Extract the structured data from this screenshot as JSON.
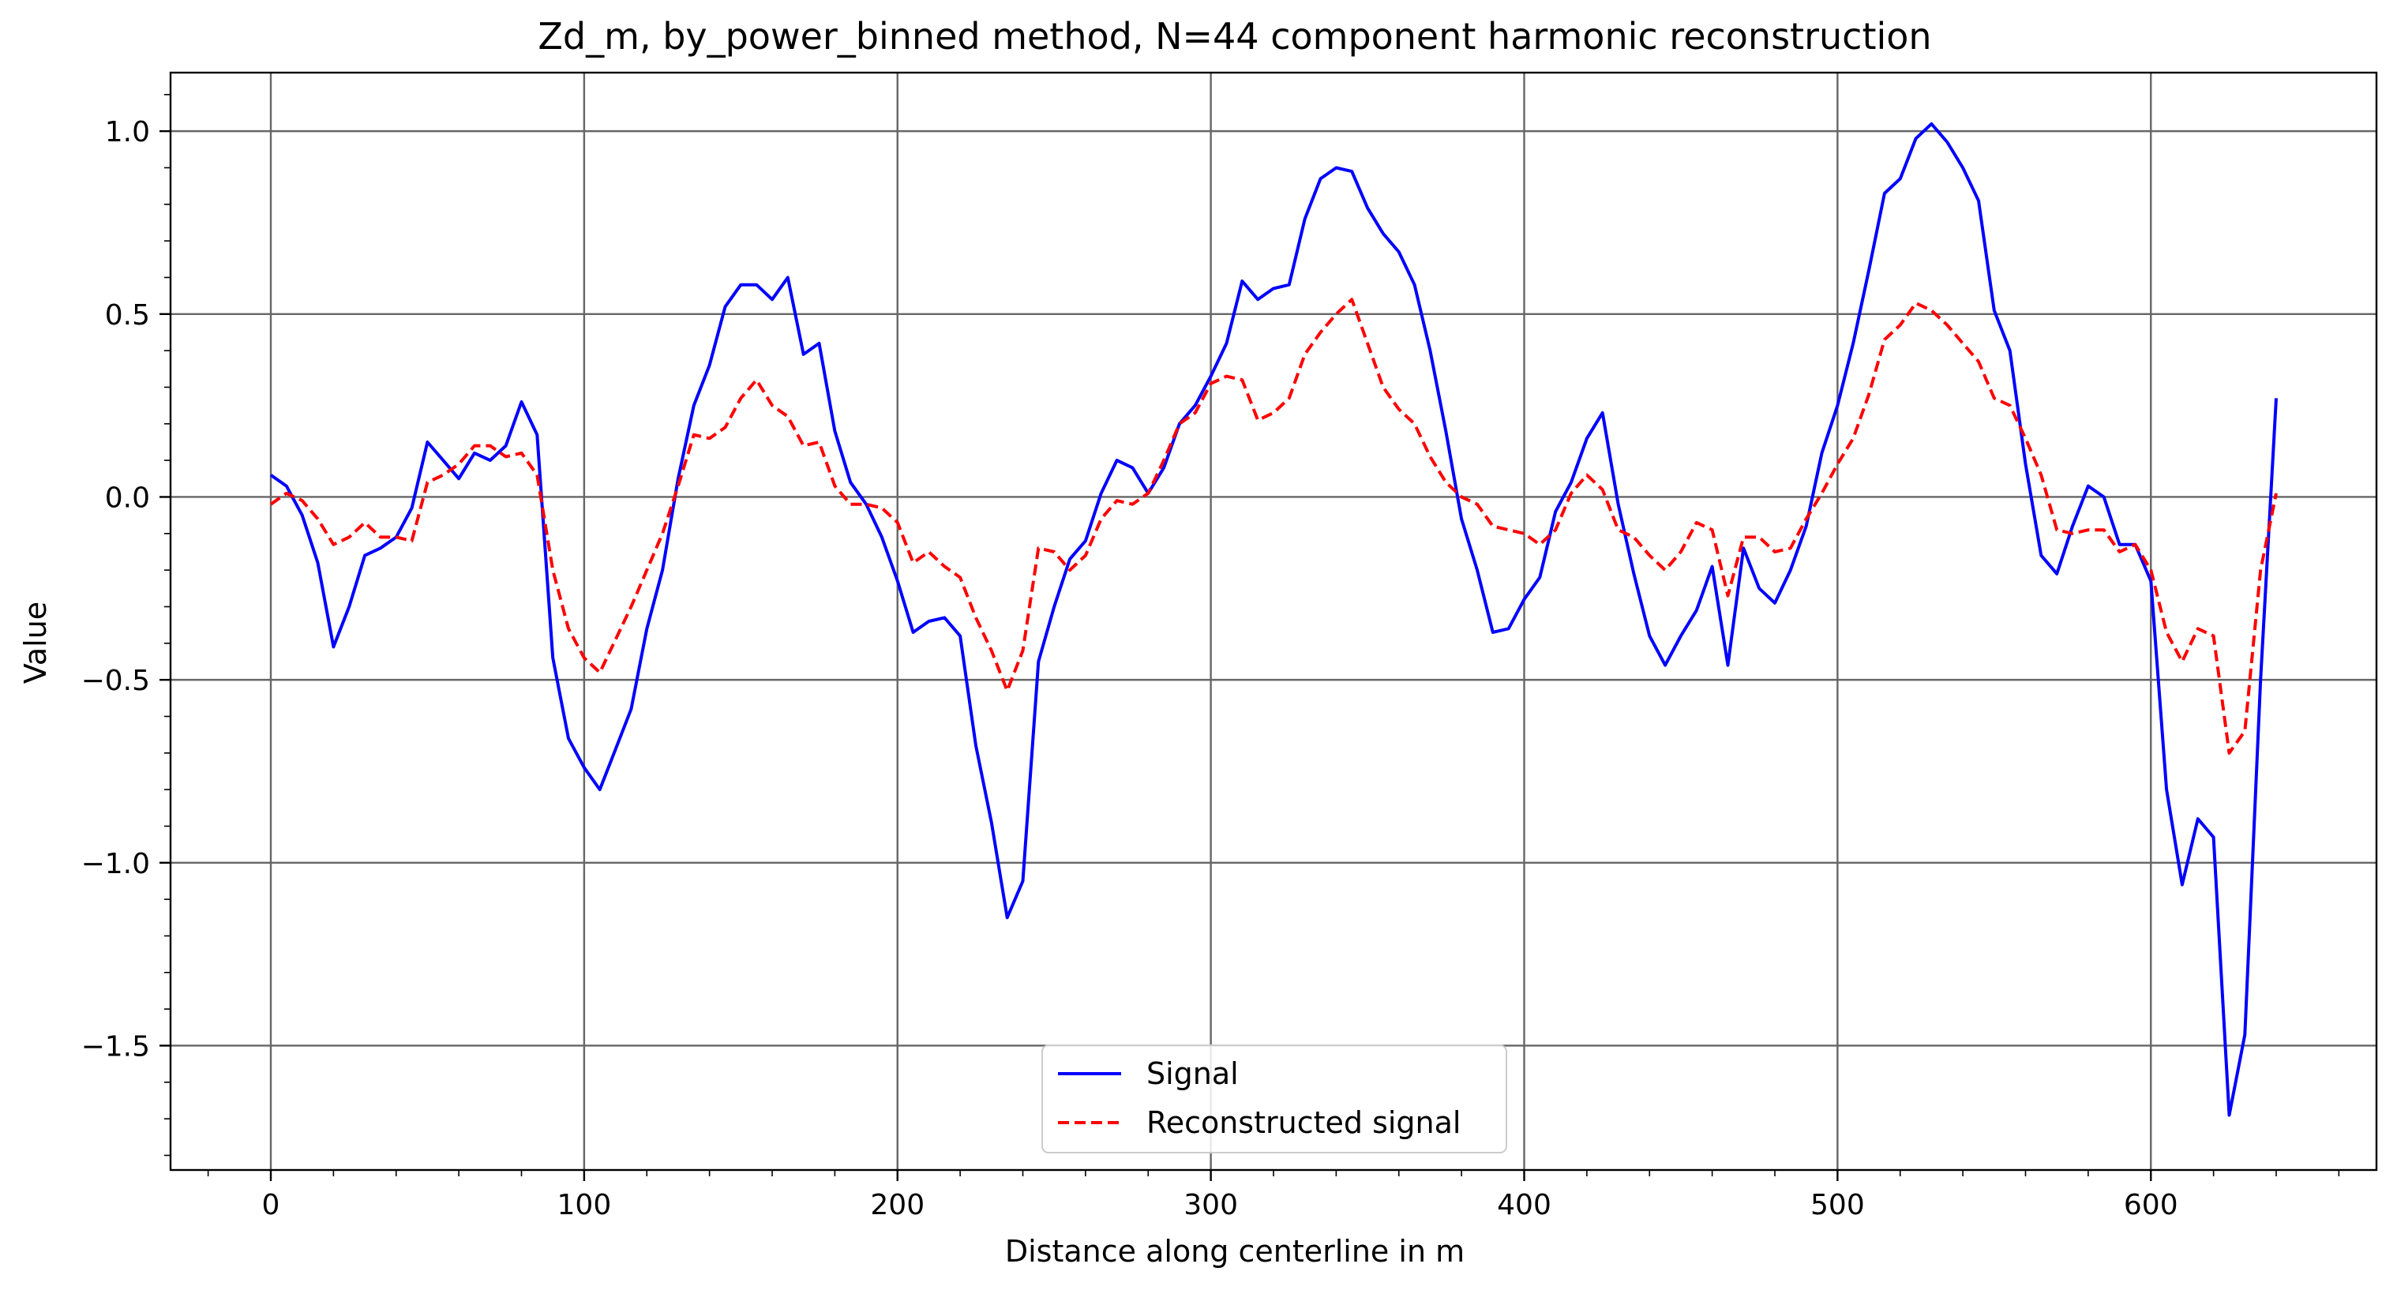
{
  "chart_data": {
    "type": "line",
    "title": "Zd_m, by_power_binned method, N=44 component harmonic reconstruction",
    "xlabel": "Distance along centerline in m",
    "ylabel": "Value",
    "xlim": [
      -32,
      672
    ],
    "ylim": [
      -1.84,
      1.16
    ],
    "xticks": [
      0,
      100,
      200,
      300,
      400,
      500,
      600
    ],
    "xtick_labels": [
      "0",
      "100",
      "200",
      "300",
      "400",
      "500",
      "600"
    ],
    "yticks": [
      1.0,
      0.5,
      0.0,
      -0.5,
      -1.0,
      -1.5
    ],
    "ytick_labels": [
      "1.0",
      "0.5",
      "0.0",
      "−0.5",
      "−1.0",
      "−1.5"
    ],
    "grid": true,
    "legend_position": "lower-center",
    "series": [
      {
        "name": "Signal",
        "color": "#0000ff",
        "style": "solid",
        "x": [
          0,
          5,
          10,
          15,
          20,
          25,
          30,
          35,
          40,
          45,
          50,
          55,
          60,
          65,
          70,
          75,
          80,
          85,
          90,
          95,
          100,
          105,
          110,
          115,
          120,
          125,
          130,
          135,
          140,
          145,
          150,
          155,
          160,
          165,
          170,
          175,
          180,
          185,
          190,
          195,
          200,
          205,
          210,
          215,
          220,
          225,
          230,
          235,
          240,
          245,
          250,
          255,
          260,
          265,
          270,
          275,
          280,
          285,
          290,
          295,
          300,
          305,
          310,
          315,
          320,
          325,
          330,
          335,
          340,
          345,
          350,
          355,
          360,
          365,
          370,
          375,
          380,
          385,
          390,
          395,
          400,
          405,
          410,
          415,
          420,
          425,
          430,
          435,
          440,
          445,
          450,
          455,
          460,
          465,
          470,
          475,
          480,
          485,
          490,
          495,
          500,
          505,
          510,
          515,
          520,
          525,
          530,
          535,
          540,
          545,
          550,
          555,
          560,
          565,
          570,
          575,
          580,
          585,
          590,
          595,
          600,
          605,
          610,
          615,
          620,
          625,
          630,
          635,
          640
        ],
        "y": [
          0.06,
          0.03,
          -0.05,
          -0.18,
          -0.41,
          -0.3,
          -0.16,
          -0.14,
          -0.11,
          -0.03,
          0.15,
          0.1,
          0.05,
          0.12,
          0.1,
          0.14,
          0.26,
          0.17,
          -0.44,
          -0.66,
          -0.74,
          -0.8,
          -0.69,
          -0.58,
          -0.36,
          -0.2,
          0.05,
          0.25,
          0.36,
          0.52,
          0.58,
          0.58,
          0.54,
          0.6,
          0.39,
          0.42,
          0.18,
          0.04,
          -0.02,
          -0.11,
          -0.23,
          -0.37,
          -0.34,
          -0.33,
          -0.38,
          -0.68,
          -0.89,
          -1.15,
          -1.05,
          -0.45,
          -0.3,
          -0.17,
          -0.12,
          0.01,
          0.1,
          0.08,
          0.01,
          0.08,
          0.2,
          0.25,
          0.33,
          0.42,
          0.59,
          0.54,
          0.57,
          0.58,
          0.76,
          0.87,
          0.9,
          0.89,
          0.79,
          0.72,
          0.67,
          0.58,
          0.4,
          0.18,
          -0.06,
          -0.2,
          -0.37,
          -0.36,
          -0.28,
          -0.22,
          -0.04,
          0.04,
          0.16,
          0.23,
          -0.02,
          -0.21,
          -0.38,
          -0.46,
          -0.38,
          -0.31,
          -0.19,
          -0.46,
          -0.14,
          -0.25,
          -0.29,
          -0.2,
          -0.08,
          0.12,
          0.25,
          0.42,
          0.62,
          0.83,
          0.87,
          0.98,
          1.02,
          0.97,
          0.9,
          0.81,
          0.51,
          0.4,
          0.09,
          -0.16,
          -0.21,
          -0.08,
          0.03,
          0.0,
          -0.13,
          -0.13,
          -0.23,
          -0.8,
          -1.06,
          -0.88,
          -0.93,
          -1.69,
          -1.47,
          -0.5,
          0.27
        ]
      },
      {
        "name": "Reconstructed signal",
        "color": "#ff0000",
        "style": "dashed",
        "x": [
          0,
          5,
          10,
          15,
          20,
          25,
          30,
          35,
          40,
          45,
          50,
          55,
          60,
          65,
          70,
          75,
          80,
          85,
          90,
          95,
          100,
          105,
          110,
          115,
          120,
          125,
          130,
          135,
          140,
          145,
          150,
          155,
          160,
          165,
          170,
          175,
          180,
          185,
          190,
          195,
          200,
          205,
          210,
          215,
          220,
          225,
          230,
          235,
          240,
          245,
          250,
          255,
          260,
          265,
          270,
          275,
          280,
          285,
          290,
          295,
          300,
          305,
          310,
          315,
          320,
          325,
          330,
          335,
          340,
          345,
          350,
          355,
          360,
          365,
          370,
          375,
          380,
          385,
          390,
          395,
          400,
          405,
          410,
          415,
          420,
          425,
          430,
          435,
          440,
          445,
          450,
          455,
          460,
          465,
          470,
          475,
          480,
          485,
          490,
          495,
          500,
          505,
          510,
          515,
          520,
          525,
          530,
          535,
          540,
          545,
          550,
          555,
          560,
          565,
          570,
          575,
          580,
          585,
          590,
          595,
          600,
          605,
          610,
          615,
          620,
          625,
          630,
          635,
          640
        ],
        "y": [
          -0.02,
          0.01,
          -0.01,
          -0.06,
          -0.13,
          -0.11,
          -0.07,
          -0.11,
          -0.11,
          -0.12,
          0.04,
          0.06,
          0.09,
          0.14,
          0.14,
          0.11,
          0.12,
          0.06,
          -0.2,
          -0.36,
          -0.44,
          -0.48,
          -0.39,
          -0.3,
          -0.2,
          -0.1,
          0.03,
          0.17,
          0.16,
          0.19,
          0.27,
          0.32,
          0.25,
          0.22,
          0.14,
          0.15,
          0.03,
          -0.02,
          -0.02,
          -0.03,
          -0.07,
          -0.18,
          -0.15,
          -0.19,
          -0.22,
          -0.33,
          -0.42,
          -0.53,
          -0.42,
          -0.14,
          -0.15,
          -0.2,
          -0.16,
          -0.06,
          -0.01,
          -0.02,
          0.01,
          0.1,
          0.2,
          0.23,
          0.31,
          0.33,
          0.32,
          0.21,
          0.23,
          0.27,
          0.39,
          0.45,
          0.5,
          0.54,
          0.42,
          0.3,
          0.24,
          0.2,
          0.11,
          0.04,
          0.0,
          -0.02,
          -0.08,
          -0.09,
          -0.1,
          -0.13,
          -0.09,
          0.01,
          0.06,
          0.02,
          -0.09,
          -0.11,
          -0.16,
          -0.2,
          -0.15,
          -0.07,
          -0.09,
          -0.27,
          -0.11,
          -0.11,
          -0.15,
          -0.14,
          -0.06,
          0.01,
          0.09,
          0.16,
          0.28,
          0.43,
          0.47,
          0.53,
          0.51,
          0.47,
          0.42,
          0.37,
          0.27,
          0.25,
          0.16,
          0.06,
          -0.09,
          -0.1,
          -0.09,
          -0.09,
          -0.15,
          -0.13,
          -0.2,
          -0.37,
          -0.45,
          -0.36,
          -0.38,
          -0.7,
          -0.64,
          -0.2,
          0.01
        ]
      }
    ]
  }
}
